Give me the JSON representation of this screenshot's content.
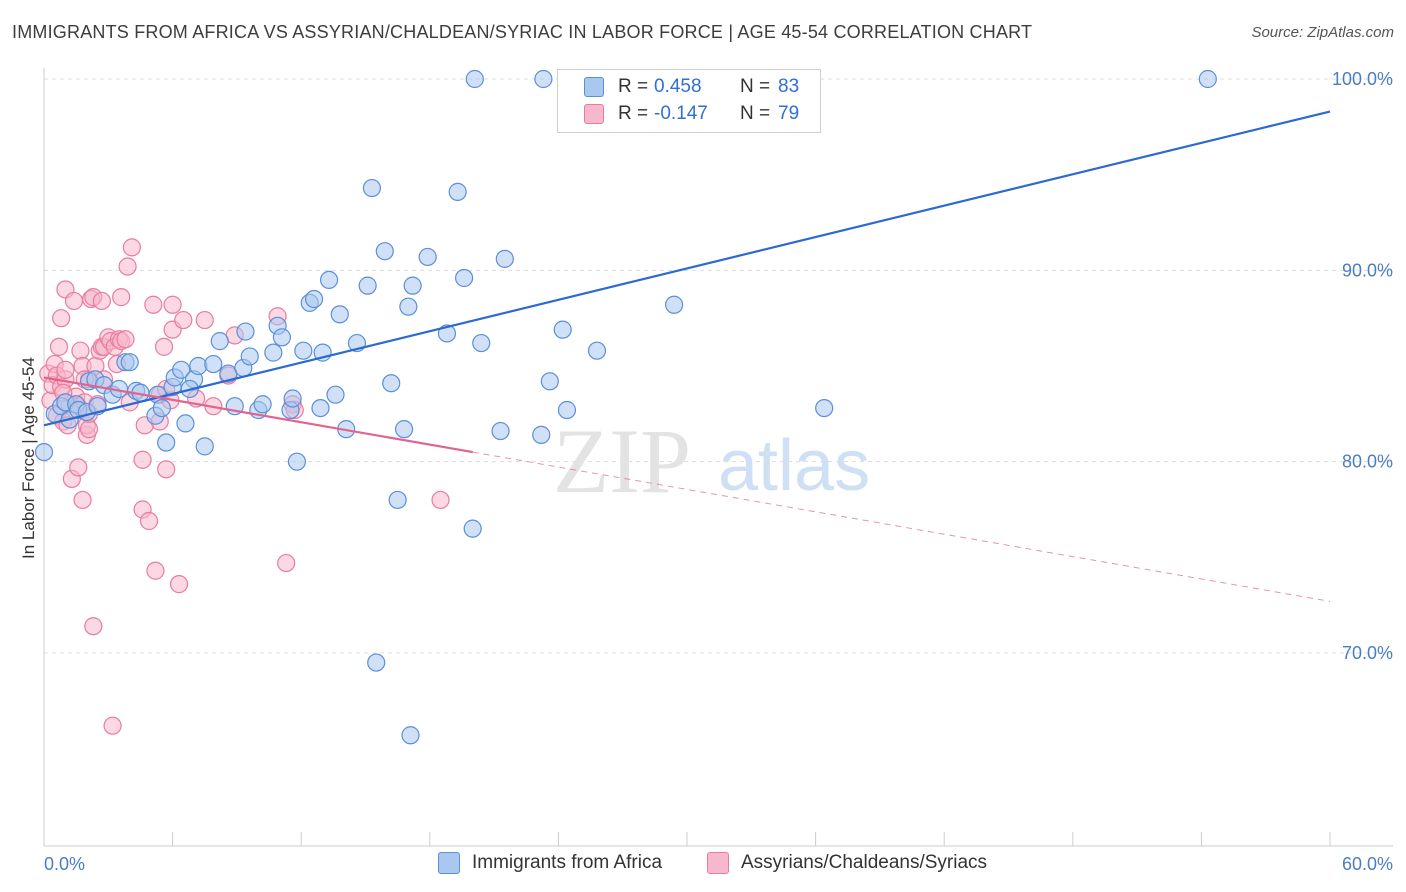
{
  "header": {
    "title": "IMMIGRANTS FROM AFRICA VS ASSYRIAN/CHALDEAN/SYRIAC IN LABOR FORCE | AGE 45-54 CORRELATION CHART",
    "source": "Source: ZipAtlas.com"
  },
  "watermark": {
    "zip": "ZIP",
    "atlas": "atlas"
  },
  "legend": {
    "rows": [
      {
        "r_label": "R =",
        "r_value": "0.458",
        "n_label": "N =",
        "n_value": "83"
      },
      {
        "r_label": "R =",
        "r_value": "-0.147",
        "n_label": "N =",
        "n_value": "79"
      }
    ]
  },
  "bottom_legend": {
    "series1": "Immigrants from Africa",
    "series2": "Assyrians/Chaldeans/Syriacs"
  },
  "colors": {
    "blue_fill": "#a9c8f0",
    "blue_stroke": "#5b8fd8",
    "blue_line": "#2a6ad1",
    "pink_fill": "#f7b8cb",
    "pink_stroke": "#e87ca0",
    "pink_line": "#e0648f",
    "tick_text": "#4a7cc7",
    "grid": "#dcdcdc"
  },
  "chart_data": {
    "type": "scatter",
    "title": "IMMIGRANTS FROM AFRICA VS ASSYRIAN/CHALDEAN/SYRIAC IN LABOR FORCE | AGE 45-54 CORRELATION CHART",
    "xlabel": "",
    "ylabel": "In Labor Force | Age 45-54",
    "xlim": [
      0,
      60
    ],
    "ylim": [
      60,
      101.5
    ],
    "x_tick_labels": [
      "0.0%",
      "60.0%"
    ],
    "y_ticks": [
      70,
      80,
      90,
      100
    ],
    "y_tick_labels": [
      "70.0%",
      "80.0%",
      "90.0%",
      "100.0%"
    ],
    "grid": true,
    "legend_placement": "top-center",
    "series": [
      {
        "name": "Immigrants from Africa",
        "r": 0.458,
        "n": 83,
        "trend": {
          "x": [
            0,
            60
          ],
          "y": [
            81.9,
            98.3
          ]
        },
        "points": [
          [
            0.0,
            80.5
          ],
          [
            0.5,
            82.5
          ],
          [
            0.8,
            82.9
          ],
          [
            1.0,
            83.1
          ],
          [
            1.2,
            82.2
          ],
          [
            1.5,
            83.0
          ],
          [
            1.6,
            82.7
          ],
          [
            2.0,
            82.6
          ],
          [
            2.1,
            84.2
          ],
          [
            2.4,
            84.3
          ],
          [
            2.8,
            84.0
          ],
          [
            3.2,
            83.5
          ],
          [
            3.5,
            83.8
          ],
          [
            3.8,
            85.2
          ],
          [
            4.0,
            85.2
          ],
          [
            4.3,
            83.7
          ],
          [
            4.5,
            83.6
          ],
          [
            5.2,
            82.4
          ],
          [
            5.3,
            83.5
          ],
          [
            5.5,
            82.8
          ],
          [
            5.7,
            81.0
          ],
          [
            6.0,
            83.9
          ],
          [
            6.1,
            84.4
          ],
          [
            6.4,
            84.8
          ],
          [
            6.6,
            82.0
          ],
          [
            7.0,
            84.3
          ],
          [
            7.2,
            85.0
          ],
          [
            7.5,
            80.8
          ],
          [
            7.9,
            85.1
          ],
          [
            8.2,
            86.3
          ],
          [
            8.6,
            84.6
          ],
          [
            8.9,
            82.9
          ],
          [
            9.3,
            84.9
          ],
          [
            9.4,
            86.8
          ],
          [
            9.6,
            85.5
          ],
          [
            10.0,
            82.7
          ],
          [
            10.2,
            83.0
          ],
          [
            10.7,
            85.7
          ],
          [
            10.9,
            87.1
          ],
          [
            11.1,
            86.5
          ],
          [
            11.5,
            82.7
          ],
          [
            11.6,
            83.3
          ],
          [
            11.8,
            80.0
          ],
          [
            12.1,
            85.8
          ],
          [
            12.4,
            88.3
          ],
          [
            12.6,
            88.5
          ],
          [
            13.0,
            85.7
          ],
          [
            13.3,
            89.5
          ],
          [
            13.6,
            83.5
          ],
          [
            13.8,
            87.7
          ],
          [
            14.1,
            81.7
          ],
          [
            14.6,
            86.2
          ],
          [
            15.1,
            89.2
          ],
          [
            15.3,
            94.3
          ],
          [
            15.5,
            69.5
          ],
          [
            15.9,
            91.0
          ],
          [
            16.2,
            84.1
          ],
          [
            16.5,
            78.0
          ],
          [
            16.8,
            81.7
          ],
          [
            17.0,
            88.1
          ],
          [
            17.2,
            89.2
          ],
          [
            17.9,
            90.7
          ],
          [
            18.8,
            86.7
          ],
          [
            19.3,
            94.1
          ],
          [
            19.6,
            89.6
          ],
          [
            20.0,
            76.5
          ],
          [
            20.1,
            100.0
          ],
          [
            20.4,
            86.2
          ],
          [
            21.3,
            81.6
          ],
          [
            21.5,
            90.6
          ],
          [
            23.3,
            100.0
          ],
          [
            23.2,
            81.4
          ],
          [
            23.6,
            84.2
          ],
          [
            24.2,
            86.9
          ],
          [
            24.4,
            82.7
          ],
          [
            25.8,
            85.8
          ],
          [
            29.4,
            88.2
          ],
          [
            36.4,
            82.8
          ],
          [
            54.3,
            100.0
          ],
          [
            17.1,
            65.7
          ],
          [
            2.5,
            82.9
          ],
          [
            6.8,
            83.8
          ],
          [
            12.9,
            82.8
          ]
        ]
      },
      {
        "name": "Assyrians/Chaldeans/Syriacs",
        "r": -0.147,
        "n": 79,
        "trend": {
          "x": [
            0,
            60
          ],
          "y": [
            84.4,
            72.7
          ]
        },
        "trend_solid_until_x": 20,
        "points": [
          [
            0.2,
            84.6
          ],
          [
            0.3,
            83.2
          ],
          [
            0.4,
            84.0
          ],
          [
            0.5,
            85.1
          ],
          [
            0.6,
            82.4
          ],
          [
            0.6,
            84.5
          ],
          [
            0.7,
            86.0
          ],
          [
            0.8,
            83.9
          ],
          [
            0.8,
            87.5
          ],
          [
            0.9,
            82.1
          ],
          [
            1.0,
            84.3
          ],
          [
            1.0,
            84.8
          ],
          [
            1.1,
            81.9
          ],
          [
            1.2,
            83.0
          ],
          [
            1.0,
            89.0
          ],
          [
            1.3,
            79.1
          ],
          [
            1.4,
            88.4
          ],
          [
            1.5,
            83.4
          ],
          [
            1.6,
            79.7
          ],
          [
            1.6,
            82.9
          ],
          [
            1.7,
            85.8
          ],
          [
            1.8,
            85.0
          ],
          [
            1.9,
            83.1
          ],
          [
            1.8,
            78.0
          ],
          [
            2.0,
            81.4
          ],
          [
            2.0,
            81.9
          ],
          [
            2.1,
            84.3
          ],
          [
            2.1,
            81.7
          ],
          [
            2.1,
            82.5
          ],
          [
            2.2,
            88.5
          ],
          [
            2.3,
            88.6
          ],
          [
            2.3,
            71.4
          ],
          [
            2.4,
            85.0
          ],
          [
            2.6,
            85.8
          ],
          [
            2.7,
            86.0
          ],
          [
            2.7,
            88.4
          ],
          [
            2.8,
            84.3
          ],
          [
            2.8,
            86.0
          ],
          [
            3.0,
            86.5
          ],
          [
            3.1,
            86.3
          ],
          [
            3.2,
            66.2
          ],
          [
            3.3,
            86.0
          ],
          [
            3.5,
            86.4
          ],
          [
            3.6,
            86.3
          ],
          [
            3.6,
            88.6
          ],
          [
            3.8,
            86.4
          ],
          [
            3.9,
            90.2
          ],
          [
            4.0,
            83.1
          ],
          [
            4.1,
            91.2
          ],
          [
            4.6,
            80.1
          ],
          [
            4.6,
            77.5
          ],
          [
            4.7,
            81.9
          ],
          [
            4.9,
            76.9
          ],
          [
            5.1,
            88.2
          ],
          [
            5.2,
            74.3
          ],
          [
            5.4,
            83.5
          ],
          [
            5.4,
            82.1
          ],
          [
            5.6,
            86.0
          ],
          [
            5.7,
            83.8
          ],
          [
            5.7,
            79.6
          ],
          [
            5.9,
            83.2
          ],
          [
            6.0,
            86.9
          ],
          [
            6.0,
            88.2
          ],
          [
            6.3,
            73.6
          ],
          [
            6.5,
            87.4
          ],
          [
            7.1,
            83.3
          ],
          [
            7.5,
            87.4
          ],
          [
            7.9,
            82.9
          ],
          [
            8.6,
            84.5
          ],
          [
            8.9,
            86.6
          ],
          [
            10.9,
            87.6
          ],
          [
            11.3,
            74.7
          ],
          [
            11.6,
            83.0
          ],
          [
            11.7,
            82.7
          ],
          [
            18.5,
            78.0
          ],
          [
            2.5,
            83.0
          ],
          [
            1.9,
            84.3
          ],
          [
            0.9,
            83.6
          ],
          [
            3.4,
            85.1
          ]
        ]
      }
    ]
  }
}
